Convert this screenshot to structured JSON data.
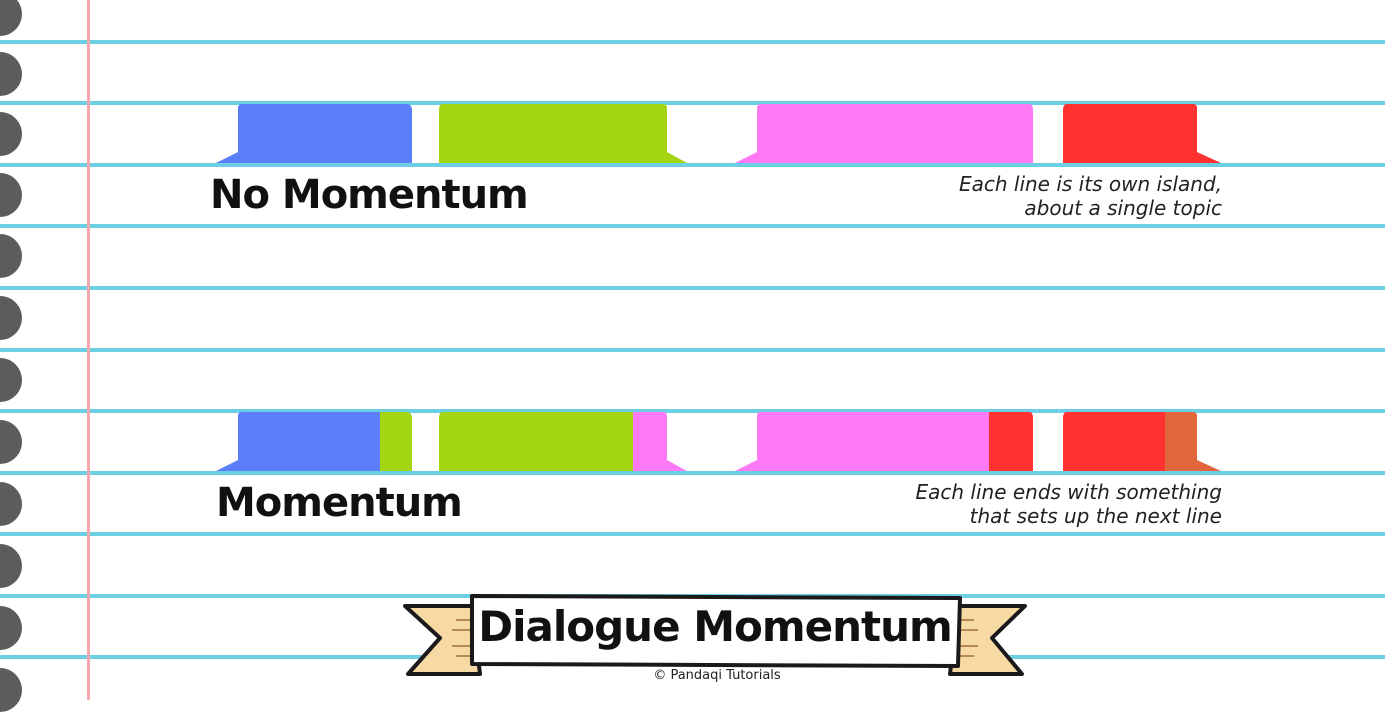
{
  "rows": [
    {
      "label": "No Momentum",
      "caption": [
        "Each line is its own island,",
        "about a single topic"
      ]
    },
    {
      "label": "Momentum",
      "caption": [
        "Each line ends with something",
        "that sets up the next line"
      ]
    }
  ],
  "colors": {
    "blue": "#5b7ffb",
    "green": "#a4d513",
    "pink": "#ff7af4",
    "red": "#ff3232",
    "orange": "#e2663c",
    "ruled_line": "#6ccfe3",
    "margin_line": "#f4a7ac",
    "banner_ribbon": "#f7d9a4"
  },
  "banner": {
    "title": "Dialogue Momentum",
    "credit": "© Pandaqi Tutorials"
  }
}
